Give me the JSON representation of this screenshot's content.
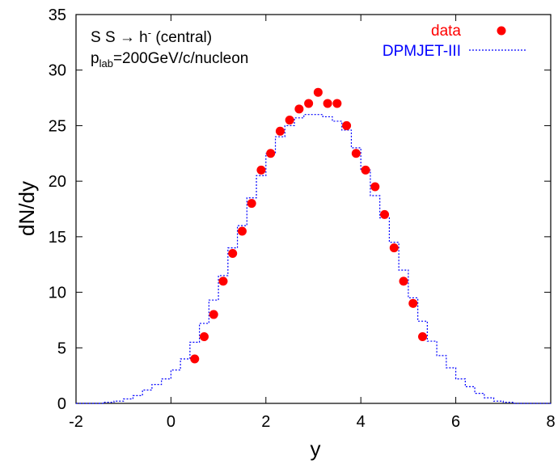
{
  "chart_data": {
    "type": "scatter",
    "xlabel": "y",
    "ylabel": "dN/dy",
    "xlim": [
      -2,
      8
    ],
    "ylim": [
      0,
      35
    ],
    "x_ticks": [
      "-2",
      "0",
      "2",
      "4",
      "6",
      "8"
    ],
    "y_ticks": [
      "0",
      "5",
      "10",
      "15",
      "20",
      "25",
      "30",
      "35"
    ],
    "grid": false,
    "legend_position": "top-right",
    "annotations": {
      "line1": "S S → h",
      "line1_sup": "-",
      "line1_rest": " (central)",
      "line2_prefix": "p",
      "line2_sub": "lab",
      "line2_rest": "=200GeV/c/nucleon"
    },
    "series": [
      {
        "name": "data",
        "kind": "points",
        "color": "#ff0000",
        "x": [
          0.5,
          0.7,
          0.9,
          1.1,
          1.3,
          1.5,
          1.7,
          1.9,
          2.1,
          2.3,
          2.5,
          2.7,
          2.9,
          3.1,
          3.3,
          3.5,
          3.7,
          3.9,
          4.1,
          4.3,
          4.5,
          4.7,
          4.9,
          5.1,
          5.3
        ],
        "y": [
          4,
          6,
          8,
          11,
          13.5,
          15.5,
          18,
          21,
          22.5,
          24.5,
          25.5,
          26.5,
          27,
          28,
          27,
          27,
          25,
          22.5,
          21,
          19.5,
          17,
          14,
          11,
          9,
          6
        ]
      },
      {
        "name": "DPMJET-III",
        "kind": "step",
        "color": "#0000ff",
        "x": [
          -2.0,
          -1.8,
          -1.6,
          -1.4,
          -1.2,
          -1.0,
          -0.8,
          -0.6,
          -0.4,
          -0.2,
          0.0,
          0.2,
          0.4,
          0.6,
          0.8,
          1.0,
          1.2,
          1.4,
          1.6,
          1.8,
          2.0,
          2.2,
          2.4,
          2.6,
          2.8,
          3.0,
          3.2,
          3.4,
          3.6,
          3.8,
          4.0,
          4.2,
          4.4,
          4.6,
          4.8,
          5.0,
          5.2,
          5.4,
          5.6,
          5.8,
          6.0,
          6.2,
          6.4,
          6.6,
          6.8,
          7.0,
          7.2,
          7.4,
          7.6,
          7.8,
          8.0
        ],
        "y": [
          0.0,
          0.0,
          0.0,
          0.1,
          0.2,
          0.4,
          0.7,
          1.2,
          1.7,
          2.2,
          3.0,
          4.0,
          5.5,
          7.2,
          9.3,
          11.5,
          14.0,
          16.0,
          18.5,
          20.5,
          22.5,
          24.0,
          25.0,
          25.7,
          26.0,
          26.0,
          25.8,
          25.4,
          24.6,
          23.0,
          21.0,
          18.7,
          16.7,
          14.5,
          12.0,
          9.5,
          7.4,
          5.6,
          4.3,
          3.2,
          2.2,
          1.5,
          0.9,
          0.5,
          0.2,
          0.1,
          0.0,
          0.0,
          0.0,
          0.0,
          0.0
        ]
      }
    ]
  }
}
